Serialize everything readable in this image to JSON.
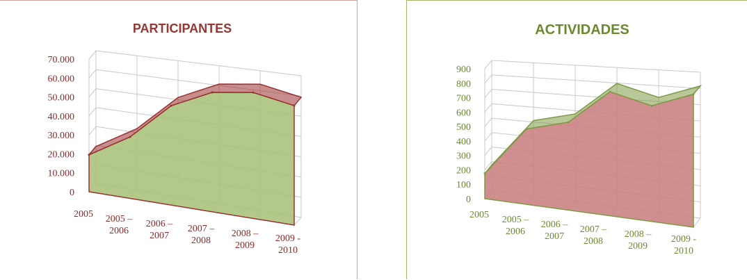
{
  "chart_data": [
    {
      "type": "area",
      "title": "PARTICIPANTES",
      "categories": [
        "2005",
        "2005 –\n2006",
        "2006 –\n2007",
        "2007 –\n2008",
        "2008 –\n2009",
        "2009 -\n2010"
      ],
      "yticks": [
        "0",
        "10.000",
        "20.000",
        "30.000",
        "40.000",
        "50.000",
        "60.000",
        "70.000"
      ],
      "ylim": [
        0,
        70000
      ],
      "series": [
        {
          "values": [
            19500,
            32000,
            51000,
            60500,
            63000,
            59000
          ]
        }
      ],
      "grid": true,
      "colors": {
        "fill": "#a9c179",
        "edge": "#9b3030",
        "text": "#8b2a2a",
        "title": "#953735"
      }
    },
    {
      "type": "area",
      "title": "ACTIVIDADES",
      "categories": [
        "2005",
        "2005 –\n2006",
        "2006 –\n2007",
        "2007 –\n2008",
        "2008 –\n2009",
        "2009 -\n2010"
      ],
      "yticks": [
        "0",
        "100",
        "200",
        "300",
        "400",
        "500",
        "600",
        "700",
        "800",
        "900"
      ],
      "ylim": [
        0,
        900
      ],
      "series": [
        {
          "values": [
            175,
            510,
            580,
            800,
            730,
            820
          ]
        }
      ],
      "grid": true,
      "colors": {
        "fill": "#c98080",
        "edge": "#7d9a44",
        "text": "#6b8a2e",
        "title": "#6b8a2e"
      }
    }
  ]
}
